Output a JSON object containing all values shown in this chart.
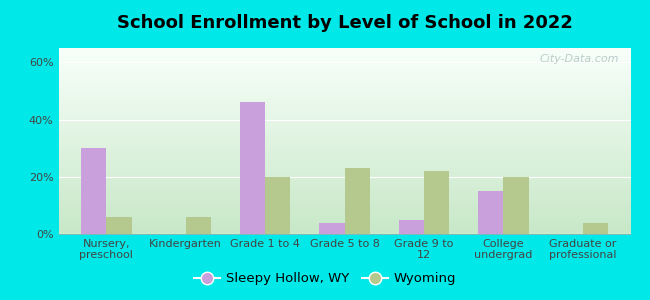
{
  "title": "School Enrollment by Level of School in 2022",
  "categories": [
    "Nursery,\npreschool",
    "Kindergarten",
    "Grade 1 to 4",
    "Grade 5 to 8",
    "Grade 9 to\n12",
    "College\nundergrad",
    "Graduate or\nprofessional"
  ],
  "sleepy_hollow": [
    30,
    0,
    46,
    4,
    5,
    15,
    0
  ],
  "wyoming": [
    6,
    6,
    20,
    23,
    22,
    20,
    4
  ],
  "color_sleepy": "#c9a0dc",
  "color_wyoming": "#b5c98e",
  "background_outer": "#00e8e8",
  "background_inner_top": "#f8fffa",
  "background_inner_bottom": "#c8e8c8",
  "ylim": [
    0,
    65
  ],
  "yticks": [
    0,
    20,
    40,
    60
  ],
  "ytick_labels": [
    "0%",
    "20%",
    "40%",
    "60%"
  ],
  "legend_sleepy": "Sleepy Hollow, WY",
  "legend_wyoming": "Wyoming",
  "bar_width": 0.32,
  "title_fontsize": 13,
  "tick_fontsize": 8,
  "legend_fontsize": 9.5,
  "watermark": "City-Data.com"
}
